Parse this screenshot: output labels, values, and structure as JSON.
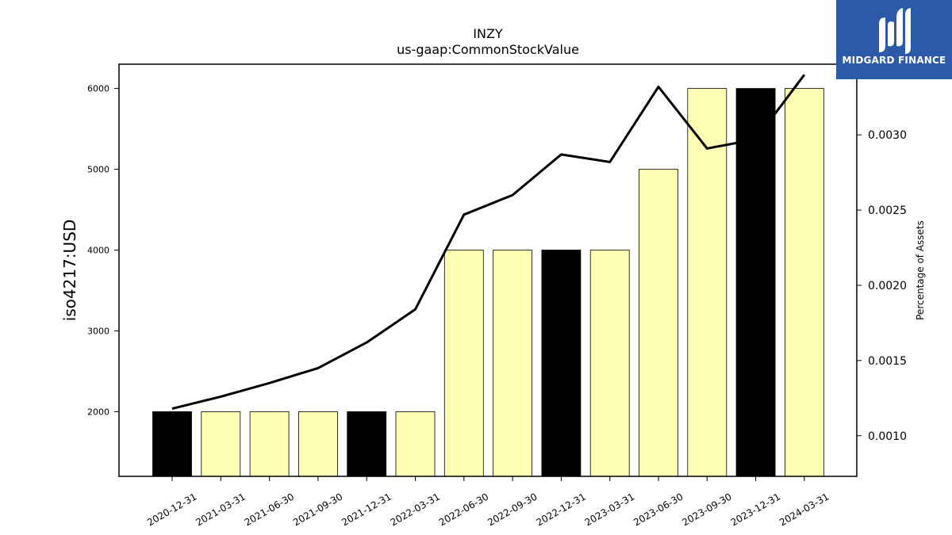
{
  "chart_data": {
    "type": "bar",
    "title": "INZY",
    "subtitle": "us-gaap:CommonStockValue",
    "ylabel": "iso4217:USD",
    "y2label": "Percentage of Assets",
    "categories": [
      "2020-12-31",
      "2021-03-31",
      "2021-06-30",
      "2021-09-30",
      "2021-12-31",
      "2022-03-31",
      "2022-06-30",
      "2022-09-30",
      "2022-12-31",
      "2023-03-31",
      "2023-06-30",
      "2023-09-30",
      "2023-12-31",
      "2024-03-31"
    ],
    "values": [
      2000,
      2000,
      2000,
      2000,
      2000,
      2000,
      4000,
      4000,
      4000,
      4000,
      5000,
      6000,
      6000,
      6000
    ],
    "bar_colors": [
      "#000000",
      "#ffffb3",
      "#ffffb3",
      "#ffffb3",
      "#000000",
      "#ffffb3",
      "#ffffb3",
      "#ffffb3",
      "#000000",
      "#ffffb3",
      "#ffffb3",
      "#ffffb3",
      "#000000",
      "#ffffb3"
    ],
    "line_values": [
      0.00118,
      0.00126,
      0.00135,
      0.00145,
      0.00162,
      0.00184,
      0.00247,
      0.0026,
      0.00287,
      0.00282,
      0.00332,
      0.00291,
      0.00297,
      0.0034
    ],
    "ylim": [
      1200,
      6300
    ],
    "yticks": [
      2000,
      3000,
      4000,
      5000,
      6000
    ],
    "y2lim": [
      0.00073,
      0.00347
    ],
    "y2ticks": [
      "0.0010",
      "0.0015",
      "0.0020",
      "0.0025",
      "0.0030"
    ],
    "line_color": "#000000",
    "grid": false
  },
  "logo": {
    "text": "MIDGARD FINANCE"
  }
}
